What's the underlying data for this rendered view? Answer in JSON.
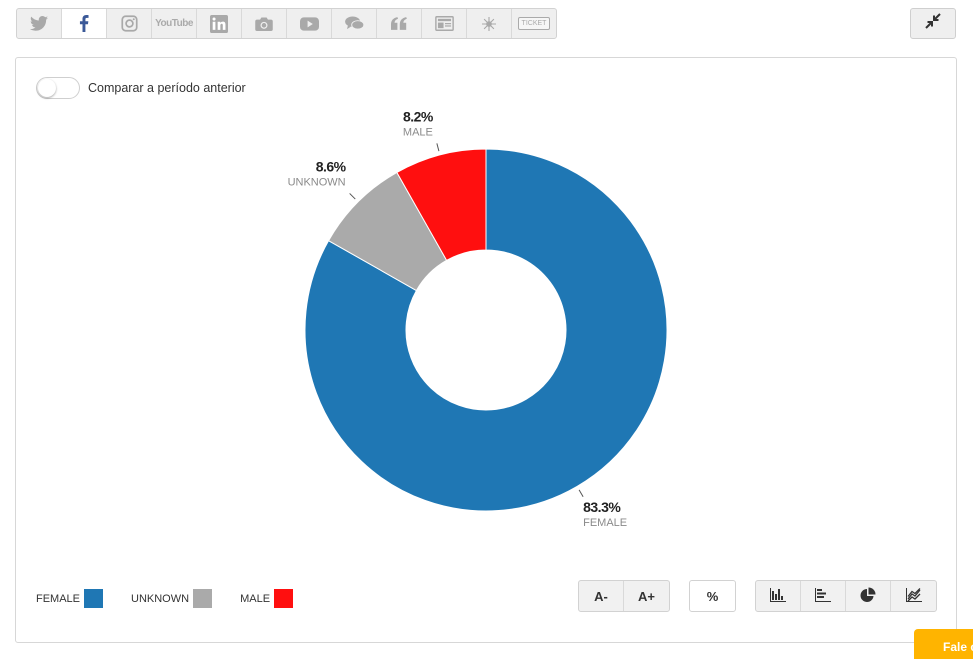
{
  "social_tabs": [
    {
      "icon": "twitter-icon",
      "active": false
    },
    {
      "icon": "facebook-icon",
      "active": true
    },
    {
      "icon": "instagram-icon",
      "active": false
    },
    {
      "icon": "youtube-icon",
      "active": false,
      "text": "YouTube"
    },
    {
      "icon": "linkedin-icon",
      "active": false
    },
    {
      "icon": "camera-icon",
      "active": false
    },
    {
      "icon": "video-play-icon",
      "active": false
    },
    {
      "icon": "chat-bubbles-icon",
      "active": false
    },
    {
      "icon": "quote-icon",
      "active": false
    },
    {
      "icon": "news-icon",
      "active": false
    },
    {
      "icon": "sunburst-icon",
      "active": false
    },
    {
      "icon": "ticket-icon",
      "active": false,
      "text": "TICKET"
    }
  ],
  "compare_toggle": {
    "label": "Comparar a período anterior",
    "on": false
  },
  "chart_data": {
    "type": "pie",
    "donut": true,
    "labels": [
      "FEMALE",
      "UNKNOWN",
      "MALE"
    ],
    "values": [
      83.3,
      8.6,
      8.2
    ],
    "value_labels": [
      "83.3%",
      "8.6%",
      "8.2%"
    ],
    "colors": [
      "#1f77b4",
      "#aaaaaa",
      "#ff0f0f"
    ],
    "legend_position": "bottom-left"
  },
  "legend": [
    {
      "label": "FEMALE",
      "color": "#1f77b4"
    },
    {
      "label": "UNKNOWN",
      "color": "#aaaaaa"
    },
    {
      "label": "MALE",
      "color": "#ff0f0f"
    }
  ],
  "font_buttons": {
    "decrease": "A-",
    "increase": "A+"
  },
  "percent_button": "%",
  "chart_type_buttons": [
    "bar-chart-icon",
    "horizontal-bar-chart-icon",
    "pie-chart-icon",
    "line-chart-icon"
  ],
  "fale_tab": "Fale c",
  "colors": {
    "accent_orange": "#ffb400",
    "facebook_blue": "#3b5998"
  }
}
